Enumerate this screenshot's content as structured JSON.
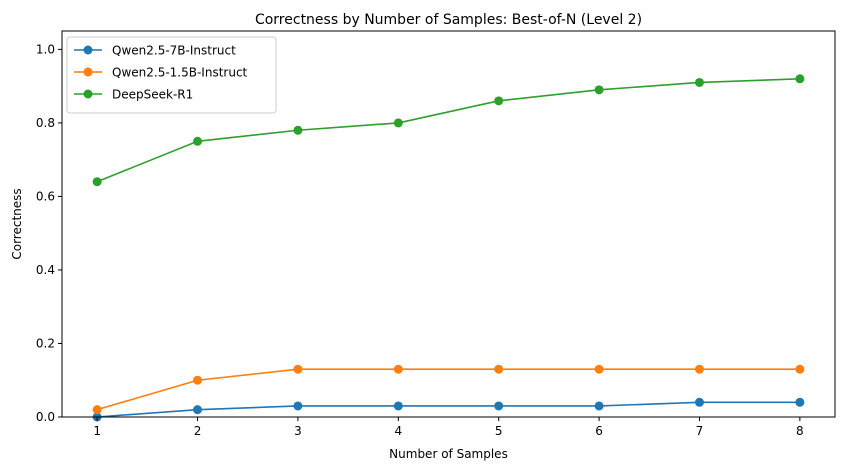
{
  "chart_data": {
    "type": "line",
    "title": "Correctness by Number of Samples: Best-of-N (Level 2)",
    "xlabel": "Number of Samples",
    "ylabel": "Correctness",
    "x": [
      1,
      2,
      3,
      4,
      5,
      6,
      7,
      8
    ],
    "xlim": [
      0.65,
      8.35
    ],
    "ylim": [
      0,
      1.05
    ],
    "yticks": [
      0,
      0.2,
      0.4,
      0.6,
      0.8,
      1.0
    ],
    "ytick_labels": [
      "0.0",
      "0.2",
      "0.4",
      "0.6",
      "0.8",
      "1.0"
    ],
    "xtick_labels": [
      "1",
      "2",
      "3",
      "4",
      "5",
      "6",
      "7",
      "8"
    ],
    "grid": false,
    "legend_position": "top-left",
    "series": [
      {
        "name": "Qwen2.5-7B-Instruct",
        "color": "#1f77b4",
        "values": [
          0.0,
          0.02,
          0.03,
          0.03,
          0.03,
          0.03,
          0.04,
          0.04
        ]
      },
      {
        "name": "Qwen2.5-1.5B-Instruct",
        "color": "#ff7f0e",
        "values": [
          0.02,
          0.1,
          0.13,
          0.13,
          0.13,
          0.13,
          0.13,
          0.13
        ]
      },
      {
        "name": "DeepSeek-R1",
        "color": "#2ca02c",
        "values": [
          0.64,
          0.75,
          0.78,
          0.8,
          0.86,
          0.89,
          0.91,
          0.92
        ]
      }
    ]
  }
}
